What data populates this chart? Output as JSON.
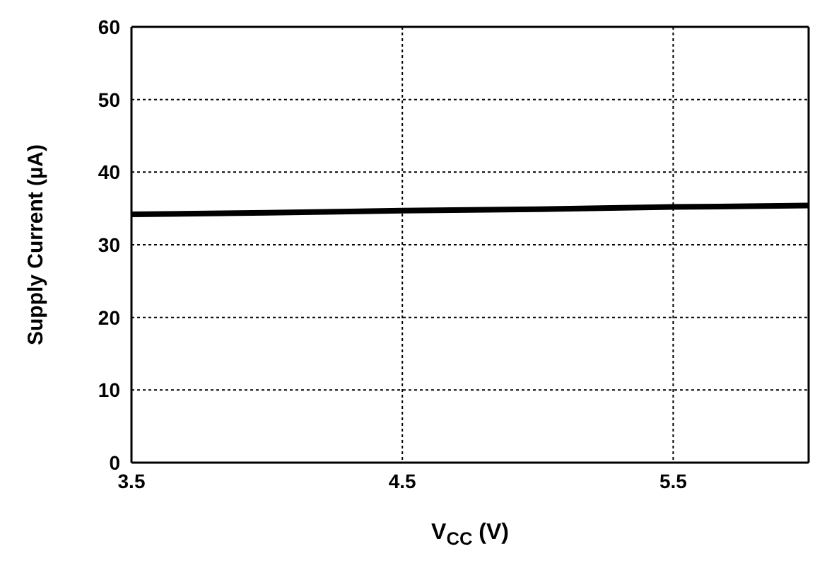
{
  "chart_data": {
    "type": "line",
    "xlabel": "V$_{CC}$ (V)",
    "ylabel": "Supply Current (µA)",
    "x": [
      3.5,
      4.0,
      4.5,
      5.0,
      5.5,
      6.0
    ],
    "series": [
      {
        "color": "#000000",
        "values": [
          34.2,
          34.4,
          34.7,
          34.9,
          35.2,
          35.4
        ]
      }
    ],
    "xlim": [
      3.5,
      6.0
    ],
    "xticks": [
      3.5,
      4.5,
      5.5
    ],
    "ylim": [
      0,
      60
    ],
    "yticks": [
      0,
      10,
      20,
      30,
      40,
      50,
      60
    ],
    "grid": true,
    "marker": "none",
    "line_style": "solid"
  }
}
